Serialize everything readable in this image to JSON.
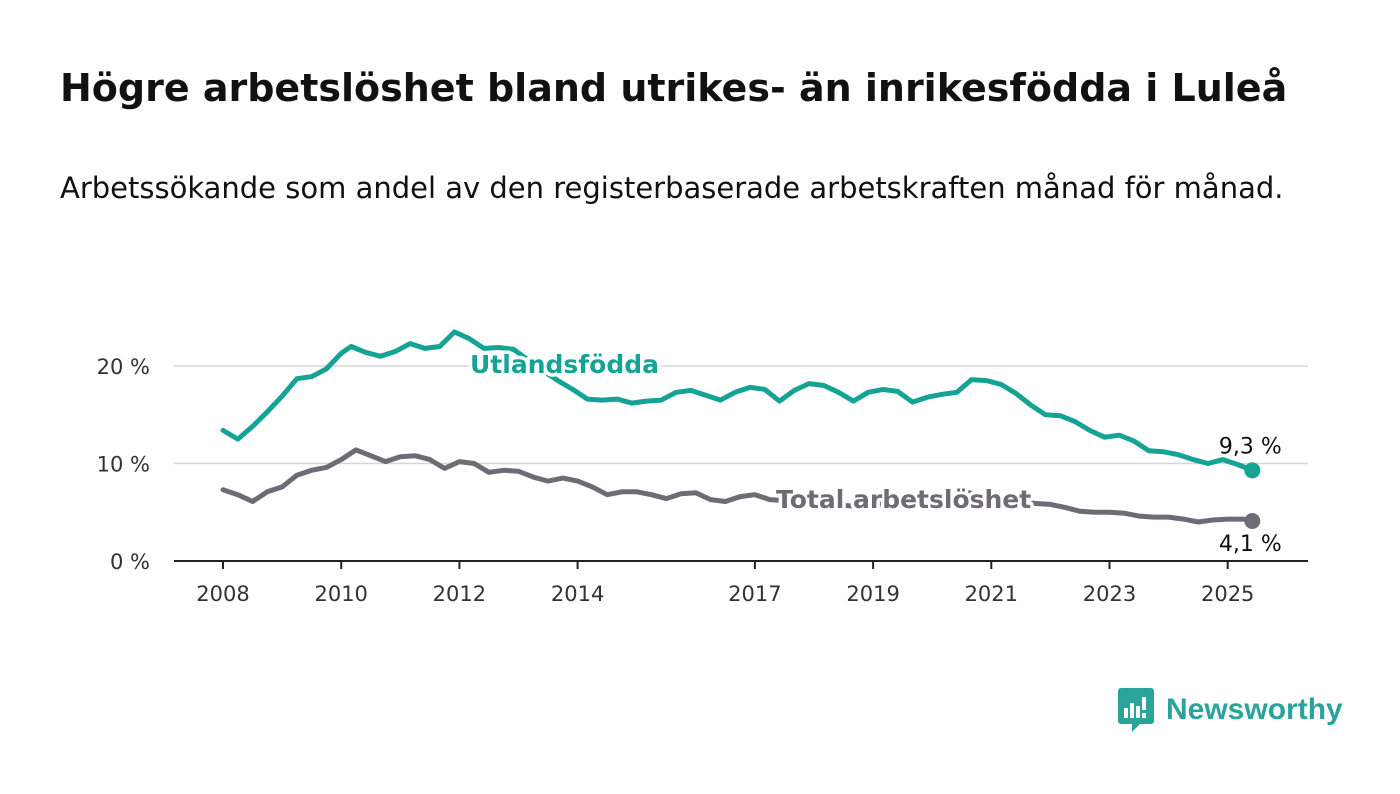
{
  "header": {
    "title": "Högre arbetslöshet bland utrikes- än inrikesfödda i Luleå",
    "subtitle": "Arbetssökande som andel av den registerbaserade arbetskraften månad för månad."
  },
  "brand": {
    "name": "Newsworthy",
    "icon": "newsworthy-logo-icon",
    "color": "#2aa39a"
  },
  "chart_data": {
    "type": "line",
    "x_ticks": [
      "2008",
      "2010",
      "2012",
      "2014",
      "2017",
      "2019",
      "2021",
      "2023",
      "2025"
    ],
    "y_ticks": [
      "0 %",
      "10 %",
      "20 %"
    ],
    "ylim": [
      0,
      25
    ],
    "grid": true,
    "series": [
      {
        "name": "Utlandsfödda",
        "color": "#15a396",
        "end_label": "9,3 %",
        "points": [
          [
            "2008-01",
            13.4
          ],
          [
            "2008-04",
            12.5
          ],
          [
            "2008-07",
            13.8
          ],
          [
            "2008-10",
            15.3
          ],
          [
            "2009-01",
            16.9
          ],
          [
            "2009-04",
            18.7
          ],
          [
            "2009-07",
            18.9
          ],
          [
            "2009-10",
            19.7
          ],
          [
            "2010-01",
            21.3
          ],
          [
            "2010-03",
            22.0
          ],
          [
            "2010-06",
            21.4
          ],
          [
            "2010-09",
            21.0
          ],
          [
            "2010-12",
            21.5
          ],
          [
            "2011-03",
            22.3
          ],
          [
            "2011-06",
            21.8
          ],
          [
            "2011-09",
            22.0
          ],
          [
            "2011-12",
            23.5
          ],
          [
            "2012-03",
            22.8
          ],
          [
            "2012-06",
            21.8
          ],
          [
            "2012-09",
            21.9
          ],
          [
            "2012-12",
            21.7
          ],
          [
            "2013-03",
            20.6
          ],
          [
            "2013-06",
            19.5
          ],
          [
            "2013-09",
            18.5
          ],
          [
            "2013-12",
            17.6
          ],
          [
            "2014-03",
            16.6
          ],
          [
            "2014-06",
            16.5
          ],
          [
            "2014-09",
            16.6
          ],
          [
            "2014-12",
            16.2
          ],
          [
            "2015-03",
            16.4
          ],
          [
            "2015-06",
            16.5
          ],
          [
            "2015-09",
            17.3
          ],
          [
            "2015-12",
            17.5
          ],
          [
            "2016-03",
            17.0
          ],
          [
            "2016-06",
            16.5
          ],
          [
            "2016-09",
            17.3
          ],
          [
            "2016-12",
            17.8
          ],
          [
            "2017-03",
            17.6
          ],
          [
            "2017-06",
            16.4
          ],
          [
            "2017-09",
            17.5
          ],
          [
            "2017-12",
            18.2
          ],
          [
            "2018-03",
            18.0
          ],
          [
            "2018-06",
            17.3
          ],
          [
            "2018-09",
            16.4
          ],
          [
            "2018-12",
            17.3
          ],
          [
            "2019-03",
            17.6
          ],
          [
            "2019-06",
            17.4
          ],
          [
            "2019-09",
            16.3
          ],
          [
            "2019-12",
            16.8
          ],
          [
            "2020-03",
            17.1
          ],
          [
            "2020-06",
            17.3
          ],
          [
            "2020-09",
            18.6
          ],
          [
            "2020-12",
            18.5
          ],
          [
            "2021-03",
            18.1
          ],
          [
            "2021-06",
            17.2
          ],
          [
            "2021-09",
            16.0
          ],
          [
            "2021-12",
            15.0
          ],
          [
            "2022-03",
            14.9
          ],
          [
            "2022-06",
            14.3
          ],
          [
            "2022-09",
            13.4
          ],
          [
            "2022-12",
            12.7
          ],
          [
            "2023-03",
            12.9
          ],
          [
            "2023-06",
            12.3
          ],
          [
            "2023-09",
            11.3
          ],
          [
            "2023-12",
            11.2
          ],
          [
            "2024-03",
            10.9
          ],
          [
            "2024-06",
            10.4
          ],
          [
            "2024-09",
            10.0
          ],
          [
            "2024-12",
            10.4
          ],
          [
            "2025-03",
            9.9
          ],
          [
            "2025-06",
            9.3
          ]
        ]
      },
      {
        "name": "Total arbetslöshet",
        "color": "#6e6b74",
        "end_label": "4,1 %",
        "points": [
          [
            "2008-01",
            7.3
          ],
          [
            "2008-04",
            6.8
          ],
          [
            "2008-07",
            6.1
          ],
          [
            "2008-10",
            7.1
          ],
          [
            "2009-01",
            7.6
          ],
          [
            "2009-04",
            8.8
          ],
          [
            "2009-07",
            9.3
          ],
          [
            "2009-10",
            9.6
          ],
          [
            "2010-01",
            10.4
          ],
          [
            "2010-04",
            11.4
          ],
          [
            "2010-07",
            10.8
          ],
          [
            "2010-10",
            10.2
          ],
          [
            "2011-01",
            10.7
          ],
          [
            "2011-04",
            10.8
          ],
          [
            "2011-07",
            10.4
          ],
          [
            "2011-10",
            9.5
          ],
          [
            "2012-01",
            10.2
          ],
          [
            "2012-04",
            10.0
          ],
          [
            "2012-07",
            9.1
          ],
          [
            "2012-10",
            9.3
          ],
          [
            "2013-01",
            9.2
          ],
          [
            "2013-04",
            8.6
          ],
          [
            "2013-07",
            8.2
          ],
          [
            "2013-10",
            8.5
          ],
          [
            "2014-01",
            8.2
          ],
          [
            "2014-04",
            7.6
          ],
          [
            "2014-07",
            6.8
          ],
          [
            "2014-10",
            7.1
          ],
          [
            "2015-01",
            7.1
          ],
          [
            "2015-04",
            6.8
          ],
          [
            "2015-07",
            6.4
          ],
          [
            "2015-10",
            6.9
          ],
          [
            "2016-01",
            7.0
          ],
          [
            "2016-04",
            6.3
          ],
          [
            "2016-07",
            6.1
          ],
          [
            "2016-10",
            6.6
          ],
          [
            "2017-01",
            6.8
          ],
          [
            "2017-04",
            6.3
          ],
          [
            "2017-07",
            6.2
          ],
          [
            "2017-10",
            6.0
          ],
          [
            "2018-01",
            6.2
          ],
          [
            "2018-04",
            5.9
          ],
          [
            "2018-07",
            5.7
          ],
          [
            "2018-10",
            5.6
          ],
          [
            "2019-01",
            5.8
          ],
          [
            "2019-04",
            5.9
          ],
          [
            "2019-07",
            5.8
          ],
          [
            "2019-10",
            5.9
          ],
          [
            "2020-01",
            6.1
          ],
          [
            "2020-04",
            6.9
          ],
          [
            "2020-07",
            7.2
          ],
          [
            "2020-10",
            6.8
          ],
          [
            "2021-01",
            6.6
          ],
          [
            "2021-04",
            6.4
          ],
          [
            "2021-07",
            6.1
          ],
          [
            "2021-10",
            5.9
          ],
          [
            "2022-01",
            5.8
          ],
          [
            "2022-04",
            5.5
          ],
          [
            "2022-07",
            5.1
          ],
          [
            "2022-10",
            5.0
          ],
          [
            "2023-01",
            5.0
          ],
          [
            "2023-04",
            4.9
          ],
          [
            "2023-07",
            4.6
          ],
          [
            "2023-10",
            4.5
          ],
          [
            "2024-01",
            4.5
          ],
          [
            "2024-04",
            4.3
          ],
          [
            "2024-07",
            4.0
          ],
          [
            "2024-10",
            4.2
          ],
          [
            "2025-01",
            4.3
          ],
          [
            "2025-04",
            4.3
          ],
          [
            "2025-06",
            4.1
          ]
        ]
      }
    ]
  }
}
